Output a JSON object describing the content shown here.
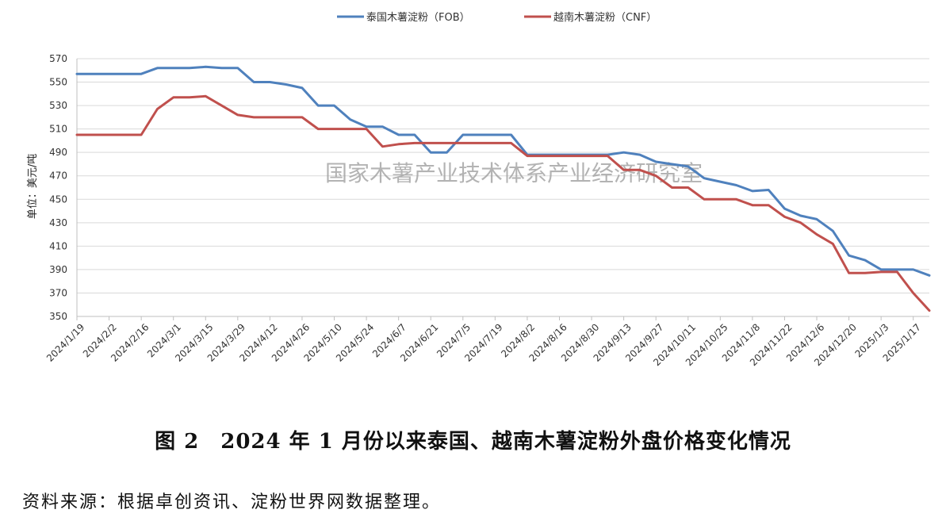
{
  "chart_data": {
    "type": "line",
    "watermark": "国家木薯产业技术体系产业经济研究室",
    "ylabel": "单位：美元/吨",
    "ylim": [
      350,
      570
    ],
    "yticks": [
      350,
      370,
      390,
      410,
      430,
      450,
      470,
      490,
      510,
      530,
      550,
      570
    ],
    "legend_position": "top-center",
    "categories": [
      "2024/1/19",
      "2024/2/2",
      "2024/2/16",
      "2024/3/1",
      "2024/3/15",
      "2024/3/29",
      "2024/4/12",
      "2024/4/26",
      "2024/5/10",
      "2024/5/24",
      "2024/6/7",
      "2024/6/21",
      "2024/7/5",
      "2024/7/19",
      "2024/8/2",
      "2024/8/16",
      "2024/8/30",
      "2024/9/13",
      "2024/9/27",
      "2024/10/11",
      "2024/10/25",
      "2024/11/8",
      "2024/11/22",
      "2024/12/6",
      "2024/12/20",
      "2025/1/3",
      "2025/1/17"
    ],
    "x_start": "2024/1/19",
    "x_end": "2025/1/24",
    "series": [
      {
        "name": "泰国木薯淀粉（FOB）",
        "color": "#4f81bd",
        "points": [
          [
            "2024/1/19",
            557
          ],
          [
            "2024/1/26",
            557
          ],
          [
            "2024/2/2",
            557
          ],
          [
            "2024/2/9",
            557
          ],
          [
            "2024/2/16",
            557
          ],
          [
            "2024/2/23",
            562
          ],
          [
            "2024/3/1",
            562
          ],
          [
            "2024/3/8",
            562
          ],
          [
            "2024/3/15",
            563
          ],
          [
            "2024/3/22",
            562
          ],
          [
            "2024/3/29",
            562
          ],
          [
            "2024/4/5",
            550
          ],
          [
            "2024/4/12",
            550
          ],
          [
            "2024/4/19",
            548
          ],
          [
            "2024/4/26",
            545
          ],
          [
            "2024/5/3",
            530
          ],
          [
            "2024/5/10",
            530
          ],
          [
            "2024/5/17",
            518
          ],
          [
            "2024/5/24",
            512
          ],
          [
            "2024/5/31",
            512
          ],
          [
            "2024/6/7",
            505
          ],
          [
            "2024/6/14",
            505
          ],
          [
            "2024/6/21",
            490
          ],
          [
            "2024/6/28",
            490
          ],
          [
            "2024/7/5",
            505
          ],
          [
            "2024/7/12",
            505
          ],
          [
            "2024/7/19",
            505
          ],
          [
            "2024/7/26",
            505
          ],
          [
            "2024/8/2",
            488
          ],
          [
            "2024/8/9",
            488
          ],
          [
            "2024/8/16",
            488
          ],
          [
            "2024/8/23",
            488
          ],
          [
            "2024/8/30",
            488
          ],
          [
            "2024/9/6",
            488
          ],
          [
            "2024/9/13",
            490
          ],
          [
            "2024/9/20",
            488
          ],
          [
            "2024/9/27",
            482
          ],
          [
            "2024/10/4",
            480
          ],
          [
            "2024/10/11",
            478
          ],
          [
            "2024/10/18",
            468
          ],
          [
            "2024/10/25",
            465
          ],
          [
            "2024/11/1",
            462
          ],
          [
            "2024/11/8",
            457
          ],
          [
            "2024/11/15",
            458
          ],
          [
            "2024/11/22",
            442
          ],
          [
            "2024/11/29",
            436
          ],
          [
            "2024/12/6",
            433
          ],
          [
            "2024/12/13",
            423
          ],
          [
            "2024/12/20",
            402
          ],
          [
            "2024/12/27",
            398
          ],
          [
            "2025/1/3",
            390
          ],
          [
            "2025/1/10",
            390
          ],
          [
            "2025/1/17",
            390
          ],
          [
            "2025/1/24",
            385
          ]
        ]
      },
      {
        "name": "越南木薯淀粉（CNF）",
        "color": "#c0504d",
        "points": [
          [
            "2024/1/19",
            505
          ],
          [
            "2024/1/26",
            505
          ],
          [
            "2024/2/2",
            505
          ],
          [
            "2024/2/9",
            505
          ],
          [
            "2024/2/16",
            505
          ],
          [
            "2024/2/23",
            527
          ],
          [
            "2024/3/1",
            537
          ],
          [
            "2024/3/8",
            537
          ],
          [
            "2024/3/15",
            538
          ],
          [
            "2024/3/22",
            530
          ],
          [
            "2024/3/29",
            522
          ],
          [
            "2024/4/5",
            520
          ],
          [
            "2024/4/12",
            520
          ],
          [
            "2024/4/19",
            520
          ],
          [
            "2024/4/26",
            520
          ],
          [
            "2024/5/3",
            510
          ],
          [
            "2024/5/10",
            510
          ],
          [
            "2024/5/17",
            510
          ],
          [
            "2024/5/24",
            510
          ],
          [
            "2024/5/31",
            495
          ],
          [
            "2024/6/7",
            497
          ],
          [
            "2024/6/14",
            498
          ],
          [
            "2024/6/21",
            498
          ],
          [
            "2024/6/28",
            498
          ],
          [
            "2024/7/5",
            498
          ],
          [
            "2024/7/12",
            498
          ],
          [
            "2024/7/19",
            498
          ],
          [
            "2024/7/26",
            498
          ],
          [
            "2024/8/2",
            487
          ],
          [
            "2024/8/9",
            487
          ],
          [
            "2024/8/16",
            487
          ],
          [
            "2024/8/23",
            487
          ],
          [
            "2024/8/30",
            487
          ],
          [
            "2024/9/6",
            487
          ],
          [
            "2024/9/13",
            475
          ],
          [
            "2024/9/20",
            475
          ],
          [
            "2024/9/27",
            470
          ],
          [
            "2024/10/4",
            460
          ],
          [
            "2024/10/11",
            460
          ],
          [
            "2024/10/18",
            450
          ],
          [
            "2024/10/25",
            450
          ],
          [
            "2024/11/1",
            450
          ],
          [
            "2024/11/8",
            445
          ],
          [
            "2024/11/15",
            445
          ],
          [
            "2024/11/22",
            435
          ],
          [
            "2024/11/29",
            430
          ],
          [
            "2024/12/6",
            420
          ],
          [
            "2024/12/13",
            412
          ],
          [
            "2024/12/20",
            387
          ],
          [
            "2024/12/27",
            387
          ],
          [
            "2025/1/3",
            388
          ],
          [
            "2025/1/10",
            388
          ],
          [
            "2025/1/17",
            370
          ],
          [
            "2025/1/24",
            355
          ]
        ]
      }
    ]
  },
  "figure_caption": "图 2　2024 年 1 月份以来泰国、越南木薯淀粉外盘价格变化情况",
  "source_note": "资料来源：根据卓创资讯、淀粉世界网数据整理。"
}
